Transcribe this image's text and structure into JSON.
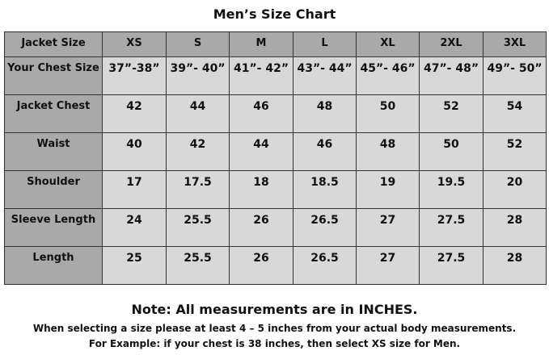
{
  "title": "Men’s Size Chart",
  "header": [
    "Jacket Size",
    "XS",
    "S",
    "M",
    "L",
    "XL",
    "2XL",
    "3XL"
  ],
  "rows": [
    {
      "label": "Your Chest Size",
      "values": [
        "37”-38”",
        "39”- 40”",
        "41”- 42”",
        "43”- 44”",
        "45”- 46”",
        "47”- 48”",
        "49”- 50”"
      ]
    },
    {
      "label": "Jacket Chest",
      "values": [
        "42",
        "44",
        "46",
        "48",
        "50",
        "52",
        "54"
      ]
    },
    {
      "label": "Waist",
      "values": [
        "40",
        "42",
        "44",
        "46",
        "48",
        "50",
        "52"
      ]
    },
    {
      "label": "Shoulder",
      "values": [
        "17",
        "17.5",
        "18",
        "18.5",
        "19",
        "19.5",
        "20"
      ]
    },
    {
      "label": "Sleeve Length",
      "values": [
        "24",
        "25.5",
        "26",
        "26.5",
        "27",
        "27.5",
        "28"
      ]
    },
    {
      "label": "Length",
      "values": [
        "25",
        "25.5",
        "26",
        "26.5",
        "27",
        "27.5",
        "28"
      ]
    }
  ],
  "note": "Note: All measurements are in INCHES.",
  "line1": "When selecting a size please at least 4 – 5 inches from your actual body measurements.",
  "line2": "For Example: if your chest is 38 inches, then select XS size for Men."
}
